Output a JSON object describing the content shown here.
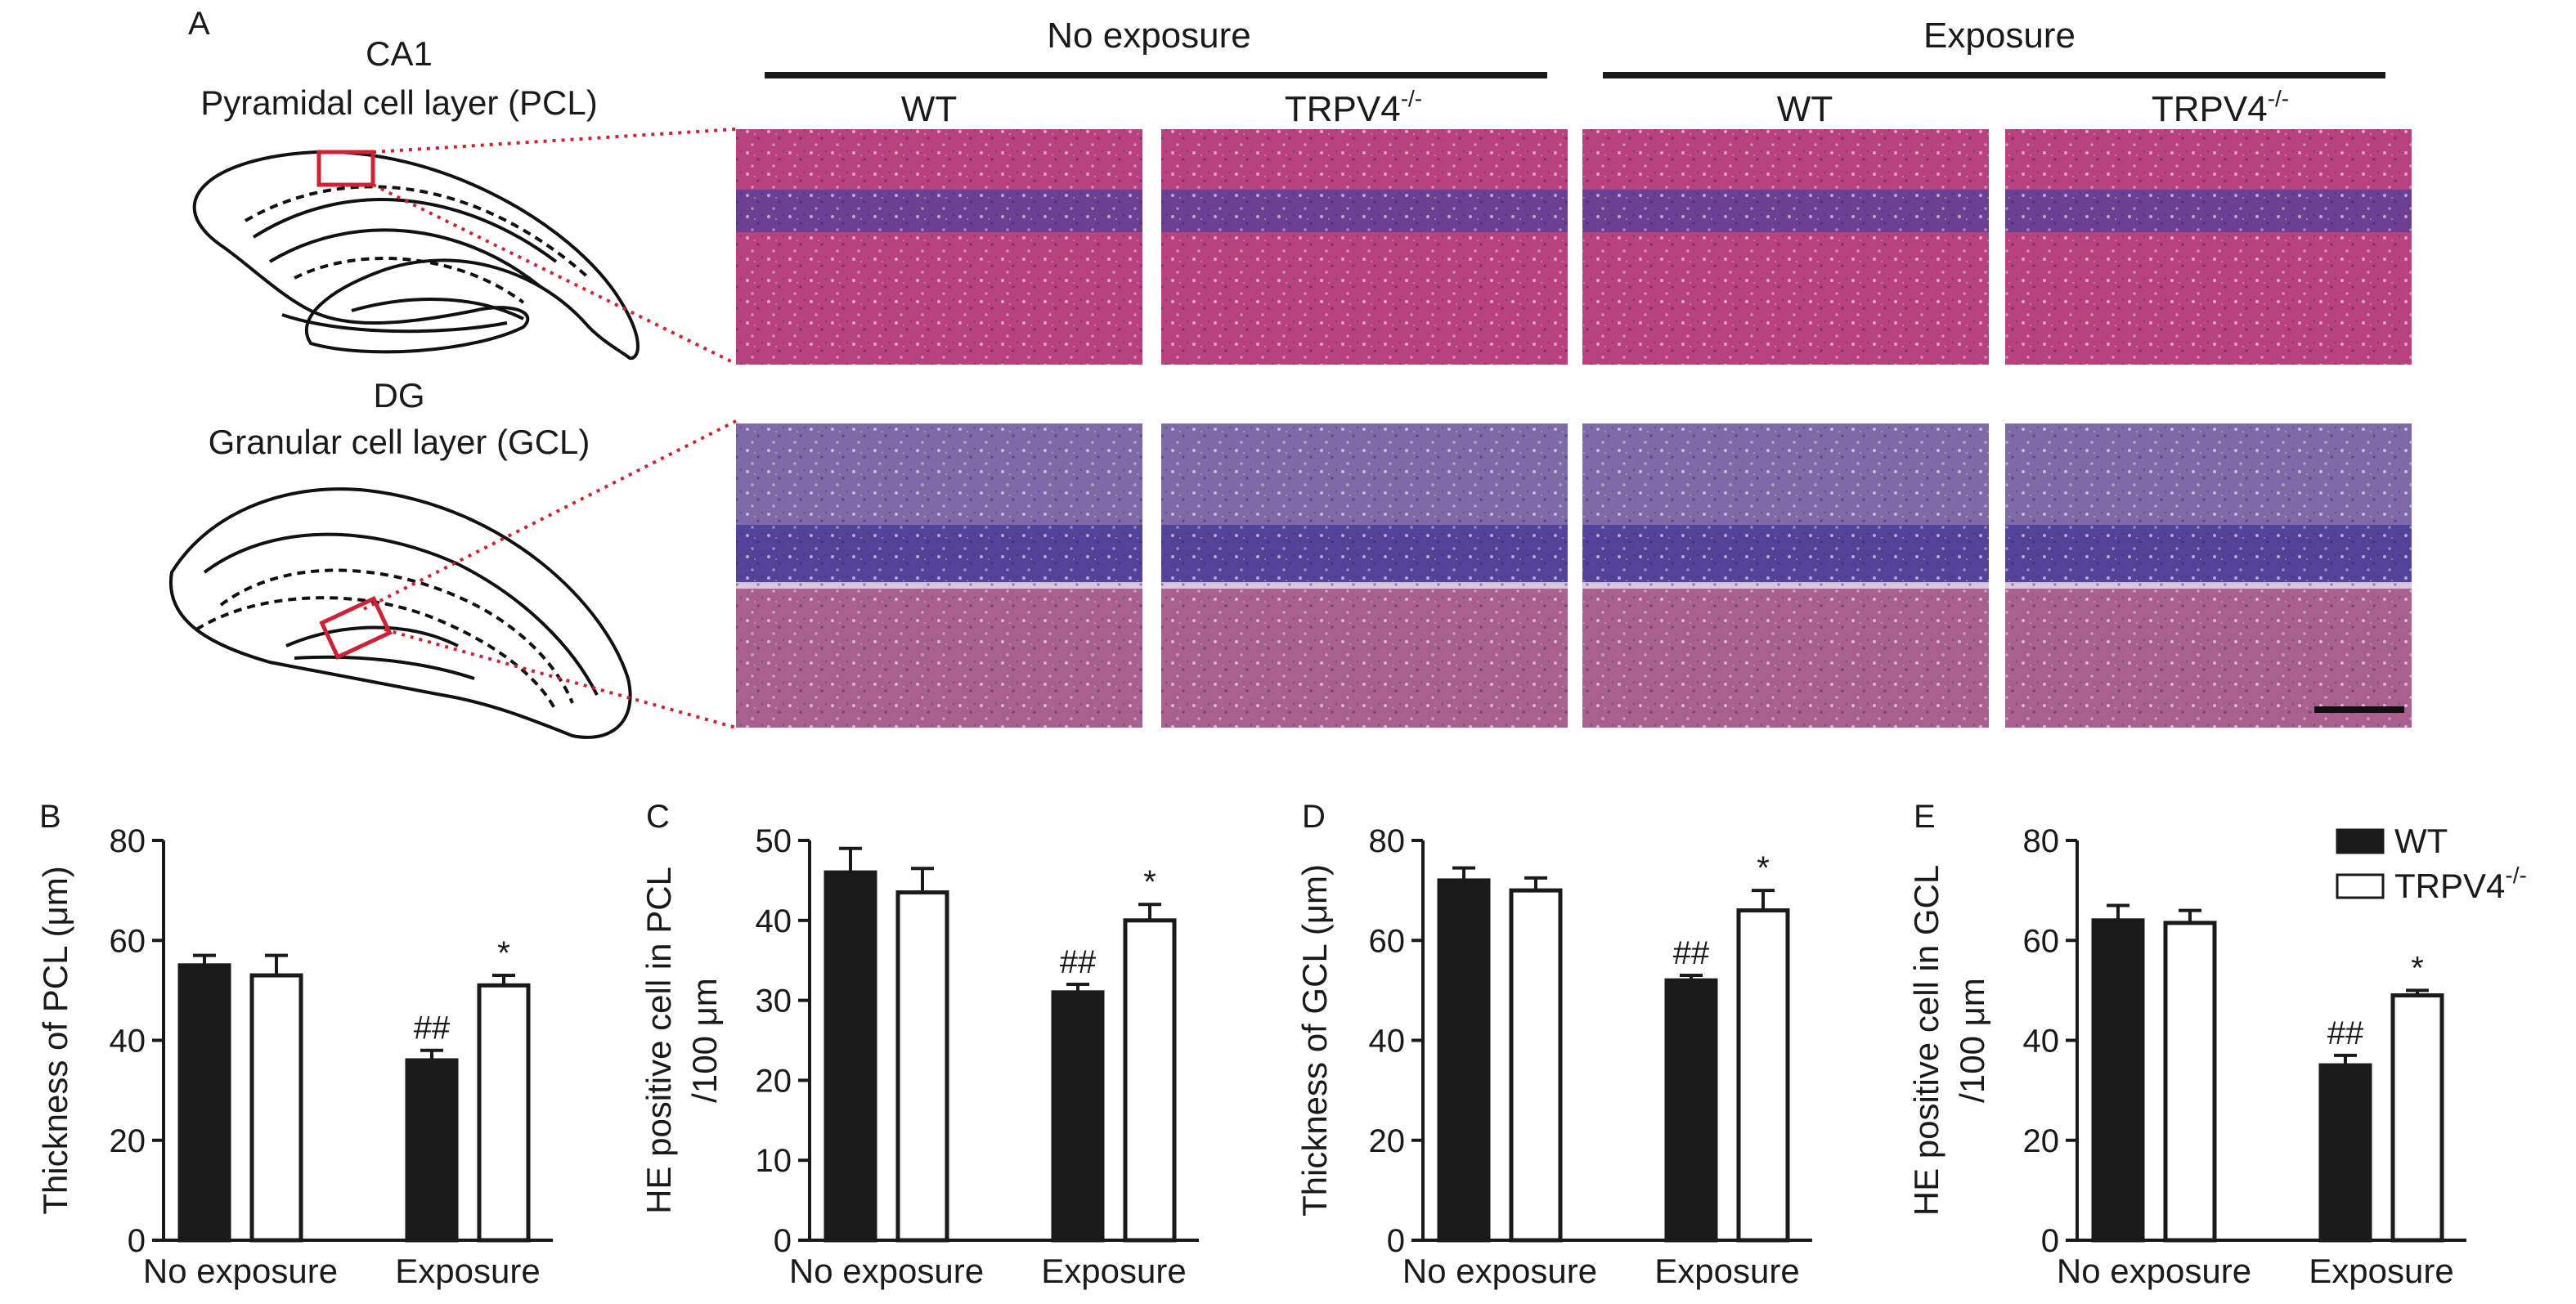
{
  "figure": {
    "panel_a": {
      "letter": "A",
      "ca1_title": "CA1",
      "ca1_subtitle": "Pyramidal cell layer (PCL)",
      "dg_title": "DG",
      "dg_subtitle": "Granular cell layer (GCL)",
      "group_no_exposure": "No exposure",
      "group_exposure": "Exposure",
      "col_wt": "WT",
      "col_trpv4_base": "TRPV4",
      "col_trpv4_sup": "-/-",
      "colors": {
        "pcl_background": "#b8427f",
        "pcl_band": "#5d3e95",
        "gcl_upper": "#7e6aa6",
        "gcl_band": "#4a3f9a",
        "gcl_lower": "#a8608f",
        "inset_box": "#cc2233",
        "zoom_lines": "#cc2233"
      }
    },
    "legend": {
      "wt": "WT",
      "trpv4_base": "TRPV4",
      "trpv4_sup": "-/-"
    },
    "colors": {
      "wt_fill": "#1a1a1a",
      "trpv4_fill": "#ffffff",
      "axis": "#1a1a1a"
    }
  },
  "chart_data": [
    {
      "panel": "B",
      "type": "bar",
      "ylabel": "Thickness of PCL (μm)",
      "ylabel_line2": "",
      "ylim": [
        0,
        80
      ],
      "yticks": [
        0,
        20,
        40,
        60,
        80
      ],
      "categories": [
        "No exposure",
        "Exposure"
      ],
      "series": [
        {
          "name": "WT",
          "values": [
            55,
            36
          ],
          "errors": [
            2,
            2
          ],
          "annotations": [
            "",
            "##"
          ]
        },
        {
          "name": "TRPV4-/-",
          "values": [
            53,
            51
          ],
          "errors": [
            4,
            2
          ],
          "annotations": [
            "",
            "*"
          ]
        }
      ]
    },
    {
      "panel": "C",
      "type": "bar",
      "ylabel": "HE positive cell in PCL",
      "ylabel_line2": "/100 μm",
      "ylim": [
        0,
        50
      ],
      "yticks": [
        0,
        10,
        20,
        30,
        40,
        50
      ],
      "categories": [
        "No exposure",
        "Exposure"
      ],
      "series": [
        {
          "name": "WT",
          "values": [
            46,
            31
          ],
          "errors": [
            3,
            1
          ],
          "annotations": [
            "",
            "##"
          ]
        },
        {
          "name": "TRPV4-/-",
          "values": [
            43.5,
            40
          ],
          "errors": [
            3,
            2
          ],
          "annotations": [
            "",
            "*"
          ]
        }
      ]
    },
    {
      "panel": "D",
      "type": "bar",
      "ylabel": "Thickness of GCL (μm)",
      "ylabel_line2": "",
      "ylim": [
        0,
        80
      ],
      "yticks": [
        0,
        20,
        40,
        60,
        80
      ],
      "categories": [
        "No exposure",
        "Exposure"
      ],
      "series": [
        {
          "name": "WT",
          "values": [
            72,
            52
          ],
          "errors": [
            2.5,
            1
          ],
          "annotations": [
            "",
            "##"
          ]
        },
        {
          "name": "TRPV4-/-",
          "values": [
            70,
            66
          ],
          "errors": [
            2.5,
            4
          ],
          "annotations": [
            "",
            "*"
          ]
        }
      ]
    },
    {
      "panel": "E",
      "type": "bar",
      "ylabel": "HE positive cell in GCL",
      "ylabel_line2": "/100 μm",
      "ylim": [
        0,
        80
      ],
      "yticks": [
        0,
        20,
        40,
        60,
        80
      ],
      "categories": [
        "No exposure",
        "Exposure"
      ],
      "series": [
        {
          "name": "WT",
          "values": [
            64,
            35
          ],
          "errors": [
            3,
            2
          ],
          "annotations": [
            "",
            "##"
          ]
        },
        {
          "name": "TRPV4-/-",
          "values": [
            63.5,
            49
          ],
          "errors": [
            2.5,
            1
          ],
          "annotations": [
            "",
            "*"
          ]
        }
      ]
    }
  ]
}
